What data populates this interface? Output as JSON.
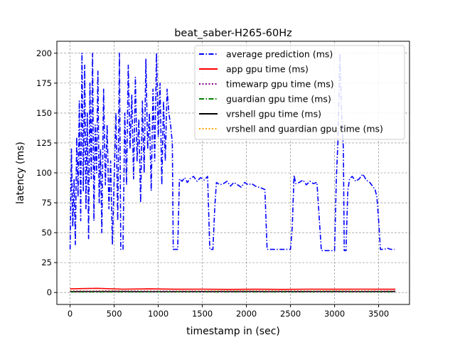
{
  "chart_data": {
    "type": "line",
    "title": "beat_saber-H265-60Hz",
    "xlabel": "timestamp in (sec)",
    "ylabel": "latency (ms)",
    "xlim": [
      -150,
      3850
    ],
    "ylim": [
      -10,
      210
    ],
    "xticks": [
      0,
      500,
      1000,
      1500,
      2000,
      2500,
      3000,
      3500
    ],
    "yticks": [
      0,
      25,
      50,
      75,
      100,
      125,
      150,
      175,
      200
    ],
    "grid": true,
    "legend_position": "upper-right",
    "series": [
      {
        "name": "average prediction (ms)",
        "color": "#0000ff",
        "style": "dashdot",
        "points": [
          [
            0,
            36
          ],
          [
            15,
            120
          ],
          [
            30,
            55
          ],
          [
            45,
            95
          ],
          [
            60,
            40
          ],
          [
            75,
            130
          ],
          [
            90,
            80
          ],
          [
            105,
            160
          ],
          [
            120,
            60
          ],
          [
            135,
            200
          ],
          [
            150,
            85
          ],
          [
            165,
            190
          ],
          [
            180,
            70
          ],
          [
            195,
            150
          ],
          [
            210,
            45
          ],
          [
            225,
            175
          ],
          [
            240,
            95
          ],
          [
            255,
            200
          ],
          [
            270,
            60
          ],
          [
            285,
            140
          ],
          [
            300,
            100
          ],
          [
            315,
            185
          ],
          [
            330,
            75
          ],
          [
            345,
            120
          ],
          [
            360,
            50
          ],
          [
            380,
            170
          ],
          [
            400,
            90
          ],
          [
            420,
            140
          ],
          [
            440,
            70
          ],
          [
            460,
            110
          ],
          [
            480,
            40
          ],
          [
            500,
            95
          ],
          [
            520,
            150
          ],
          [
            540,
            60
          ],
          [
            560,
            200
          ],
          [
            575,
            36
          ],
          [
            600,
            36
          ],
          [
            620,
            150
          ],
          [
            640,
            90
          ],
          [
            660,
            190
          ],
          [
            680,
            120
          ],
          [
            700,
            165
          ],
          [
            720,
            95
          ],
          [
            740,
            180
          ],
          [
            760,
            110
          ],
          [
            780,
            145
          ],
          [
            800,
            75
          ],
          [
            820,
            160
          ],
          [
            840,
            100
          ],
          [
            860,
            195
          ],
          [
            880,
            120
          ],
          [
            900,
            150
          ],
          [
            920,
            85
          ],
          [
            940,
            170
          ],
          [
            960,
            110
          ],
          [
            980,
            200
          ],
          [
            1000,
            130
          ],
          [
            1020,
            175
          ],
          [
            1040,
            90
          ],
          [
            1060,
            160
          ],
          [
            1080,
            110
          ],
          [
            1100,
            170
          ],
          [
            1120,
            150
          ],
          [
            1140,
            140
          ],
          [
            1160,
            125
          ],
          [
            1170,
            36
          ],
          [
            1200,
            36
          ],
          [
            1220,
            36
          ],
          [
            1240,
            95
          ],
          [
            1270,
            93
          ],
          [
            1300,
            96
          ],
          [
            1330,
            92
          ],
          [
            1360,
            95
          ],
          [
            1400,
            97
          ],
          [
            1440,
            93
          ],
          [
            1480,
            96
          ],
          [
            1520,
            94
          ],
          [
            1560,
            97
          ],
          [
            1585,
            36
          ],
          [
            1620,
            36
          ],
          [
            1640,
            70
          ],
          [
            1660,
            92
          ],
          [
            1700,
            90
          ],
          [
            1740,
            91
          ],
          [
            1780,
            93
          ],
          [
            1820,
            89
          ],
          [
            1860,
            92
          ],
          [
            1900,
            90
          ],
          [
            1940,
            88
          ],
          [
            1980,
            92
          ],
          [
            2020,
            90
          ],
          [
            2060,
            91
          ],
          [
            2100,
            89
          ],
          [
            2140,
            88
          ],
          [
            2180,
            87
          ],
          [
            2210,
            86
          ],
          [
            2235,
            36
          ],
          [
            2300,
            36
          ],
          [
            2400,
            36
          ],
          [
            2500,
            36
          ],
          [
            2520,
            55
          ],
          [
            2540,
            98
          ],
          [
            2560,
            91
          ],
          [
            2600,
            92
          ],
          [
            2640,
            94
          ],
          [
            2680,
            90
          ],
          [
            2720,
            93
          ],
          [
            2760,
            91
          ],
          [
            2800,
            92
          ],
          [
            2850,
            35
          ],
          [
            2900,
            35
          ],
          [
            2950,
            35
          ],
          [
            3000,
            35
          ],
          [
            3020,
            95
          ],
          [
            3040,
            130
          ],
          [
            3060,
            200
          ],
          [
            3080,
            150
          ],
          [
            3100,
            120
          ],
          [
            3110,
            35
          ],
          [
            3130,
            35
          ],
          [
            3150,
            85
          ],
          [
            3170,
            95
          ],
          [
            3200,
            97
          ],
          [
            3240,
            93
          ],
          [
            3280,
            95
          ],
          [
            3320,
            99
          ],
          [
            3360,
            94
          ],
          [
            3400,
            92
          ],
          [
            3440,
            88
          ],
          [
            3460,
            86
          ],
          [
            3480,
            80
          ],
          [
            3500,
            60
          ],
          [
            3520,
            36
          ],
          [
            3560,
            36
          ],
          [
            3600,
            37
          ],
          [
            3640,
            36
          ],
          [
            3680,
            36
          ]
        ]
      },
      {
        "name": "app gpu time (ms)",
        "color": "#ff0000",
        "style": "solid",
        "points": [
          [
            0,
            3
          ],
          [
            300,
            3.5
          ],
          [
            600,
            2.8
          ],
          [
            900,
            3
          ],
          [
            1200,
            2.7
          ],
          [
            1500,
            2.8
          ],
          [
            1800,
            2.6
          ],
          [
            2100,
            2.7
          ],
          [
            2400,
            2.6
          ],
          [
            2700,
            2.8
          ],
          [
            3000,
            2.7
          ],
          [
            3300,
            2.8
          ],
          [
            3600,
            2.7
          ],
          [
            3690,
            2.7
          ]
        ]
      },
      {
        "name": "timewarp gpu time (ms)",
        "color": "#800080",
        "style": "dotted",
        "points": [
          [
            0,
            1
          ],
          [
            600,
            1.1
          ],
          [
            1200,
            1
          ],
          [
            1800,
            0.9
          ],
          [
            2400,
            1
          ],
          [
            3000,
            0.9
          ],
          [
            3690,
            1
          ]
        ]
      },
      {
        "name": "guardian gpu time (ms)",
        "color": "#008000",
        "style": "dashdot",
        "points": [
          [
            0,
            0.5
          ],
          [
            600,
            0.5
          ],
          [
            1200,
            0.6
          ],
          [
            1800,
            0.5
          ],
          [
            2400,
            0.5
          ],
          [
            3000,
            0.6
          ],
          [
            3690,
            0.5
          ]
        ]
      },
      {
        "name": "vrshell gpu time (ms)",
        "color": "#000000",
        "style": "solid",
        "points": [
          [
            0,
            0.8
          ],
          [
            500,
            0.9
          ],
          [
            1000,
            0.7
          ],
          [
            1500,
            0.8
          ],
          [
            2000,
            0.9
          ],
          [
            2500,
            0.8
          ],
          [
            3000,
            0.9
          ],
          [
            3500,
            0.8
          ],
          [
            3690,
            0.9
          ]
        ]
      },
      {
        "name": "vrshell and guardian gpu time (ms)",
        "color": "#ffa500",
        "style": "dotted",
        "points": [
          [
            0,
            1.3
          ],
          [
            500,
            1.4
          ],
          [
            1000,
            1.2
          ],
          [
            1500,
            1.3
          ],
          [
            2000,
            1.4
          ],
          [
            2500,
            1.3
          ],
          [
            3000,
            1.4
          ],
          [
            3500,
            1.3
          ],
          [
            3690,
            1.3
          ]
        ]
      }
    ]
  }
}
